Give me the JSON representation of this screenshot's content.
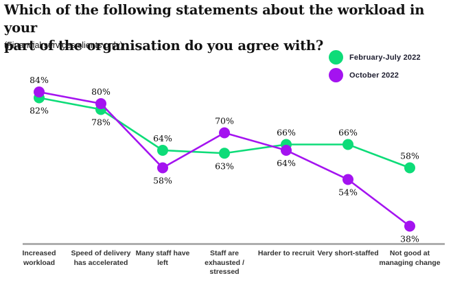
{
  "title": {
    "line1": "Which of the following statements about the workload in your",
    "line2": "part of the organisation do you agree with?"
  },
  "subtitle": "(Financial services clients only)",
  "legend": [
    {
      "label": "February-July 2022",
      "color": "#0ddc78"
    },
    {
      "label": "October 2022",
      "color": "#a413f0"
    }
  ],
  "chart_data": {
    "type": "line",
    "categories": [
      "Increased workload",
      "Speed of delivery has accelerated",
      "Many staff have left",
      "Staff are exhausted / stressed",
      "Harder to recruit",
      "Very short-staffed",
      "Not good at managing change"
    ],
    "series": [
      {
        "name": "February-July 2022",
        "color": "#0ddc78",
        "values": [
          82,
          78,
          64,
          63,
          66,
          66,
          58
        ]
      },
      {
        "name": "October 2022",
        "color": "#a413f0",
        "values": [
          84,
          80,
          58,
          70,
          64,
          54,
          38
        ]
      }
    ],
    "value_suffix": "%",
    "data_labels": true,
    "ylim": [
      30,
      90
    ],
    "grid": false,
    "legend_position": "top-right"
  }
}
